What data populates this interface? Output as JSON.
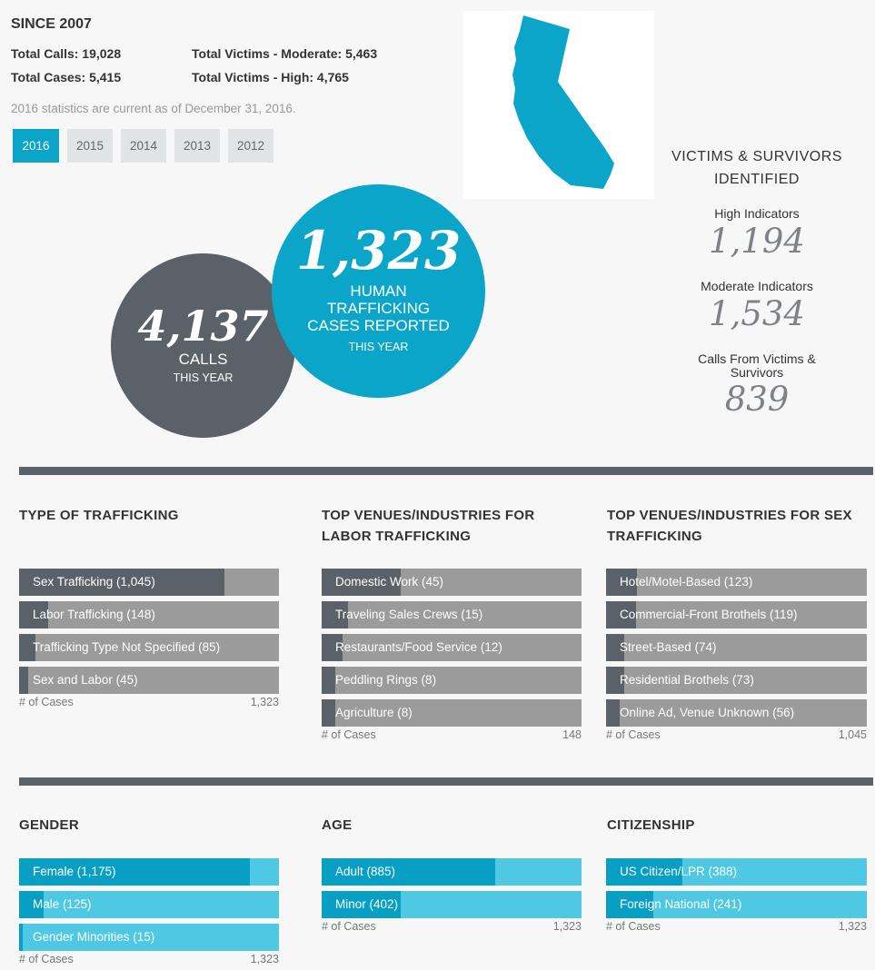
{
  "since": {
    "title": "SINCE 2007",
    "total_calls": "Total Calls: 19,028",
    "total_cases": "Total Cases: 5,415",
    "victims_moderate": "Total Victims - Moderate: 5,463",
    "victims_high": "Total Victims - High: 4,765",
    "note": "2016 statistics are current as of December 31, 2016."
  },
  "years": [
    "2016",
    "2015",
    "2014",
    "2013",
    "2012"
  ],
  "active_year": "2016",
  "colors": {
    "teal": "#0aa5c9",
    "slate": "#5b6168",
    "bar_gray": "#9b9b9b",
    "light_blue": "#4ec8e3"
  },
  "calls": {
    "number": "4,137",
    "label": "CALLS",
    "sub": "THIS YEAR"
  },
  "cases": {
    "number": "1,323",
    "line1": "HUMAN",
    "line2": "TRAFFICKING",
    "line3": "CASES REPORTED",
    "sub": "THIS YEAR"
  },
  "victims": {
    "title_line1": "VICTIMS & SURVIVORS",
    "title_line2": "IDENTIFIED",
    "high_label": "High Indicators",
    "high_value": "1,194",
    "moderate_label": "Moderate Indicators",
    "moderate_value": "1,534",
    "calls_label_line1": "Calls From Victims &",
    "calls_label_line2": "Survivors",
    "calls_value": "839"
  },
  "chart_data": [
    {
      "type": "bar",
      "title": "TYPE OF TRAFFICKING",
      "categories": [
        "Sex Trafficking (1,045)",
        "Labor Trafficking (148)",
        "Trafficking Type Not Specified (85)",
        "Sex and Labor (45)"
      ],
      "values": [
        1045,
        148,
        85,
        45
      ],
      "max": 1323,
      "xlabel": "# of Cases",
      "xmax_label": "1,323"
    },
    {
      "type": "bar",
      "title_line1": "TOP VENUES/INDUSTRIES FOR",
      "title_line2": "LABOR TRAFFICKING",
      "categories": [
        "Domestic Work (45)",
        "Traveling Sales Crews (15)",
        "Restaurants/Food Service (12)",
        "Peddling Rings (8)",
        "Agriculture (8)"
      ],
      "values": [
        45,
        15,
        12,
        8,
        8
      ],
      "max": 148,
      "xlabel": "# of Cases",
      "xmax_label": "148"
    },
    {
      "type": "bar",
      "title_line1": "TOP VENUES/INDUSTRIES FOR SEX",
      "title_line2": "TRAFFICKING",
      "categories": [
        "Hotel/Motel-Based (123)",
        "Commercial-Front Brothels (119)",
        "Street-Based (74)",
        "Residential Brothels (73)",
        "Online Ad, Venue Unknown (56)"
      ],
      "values": [
        123,
        119,
        74,
        73,
        56
      ],
      "max": 1045,
      "xlabel": "# of Cases",
      "xmax_label": "1,045"
    },
    {
      "type": "bar",
      "title": "GENDER",
      "categories": [
        "Female (1,175)",
        "Male (125)",
        "Gender Minorities (15)"
      ],
      "values": [
        1175,
        125,
        15
      ],
      "max": 1323,
      "xlabel": "# of Cases",
      "xmax_label": "1,323"
    },
    {
      "type": "bar",
      "title": "AGE",
      "categories": [
        "Adult (885)",
        "Minor (402)"
      ],
      "values": [
        885,
        402
      ],
      "max": 1323,
      "xlabel": "# of Cases",
      "xmax_label": "1,323"
    },
    {
      "type": "bar",
      "title": "CITIZENSHIP",
      "categories": [
        "US Citizen/LPR (388)",
        "Foreign National (241)"
      ],
      "values": [
        388,
        241
      ],
      "max": 1323,
      "xlabel": "# of Cases",
      "xmax_label": "1,323"
    }
  ]
}
